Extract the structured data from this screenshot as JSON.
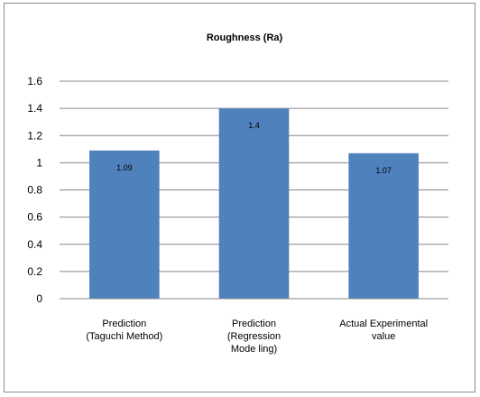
{
  "chart_data": {
    "type": "bar",
    "title": "Roughness (Ra)",
    "categories": [
      [
        "Prediction",
        "(Taguchi Method)"
      ],
      [
        "Prediction",
        "(Regression",
        "Mode ling)"
      ],
      [
        "Actual Experimental",
        "value"
      ]
    ],
    "values": [
      1.09,
      1.4,
      1.07
    ],
    "data_labels": [
      "1.09",
      "1.4",
      "1.07"
    ],
    "ylim": [
      0,
      1.6
    ],
    "yticks": [
      "0",
      "0.2",
      "0.4",
      "0.6",
      "0.8",
      "1",
      "1.2",
      "1.4",
      "1.6"
    ],
    "grid": true,
    "legend": "none",
    "bar_color": "#4f81bd",
    "grid_color": "#868686"
  }
}
